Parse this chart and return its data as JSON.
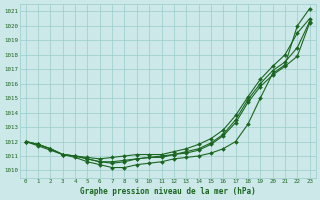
{
  "title": "Graphe pression niveau de la mer (hPa)",
  "bg_color": "#cce8e8",
  "grid_color": "#99cccc",
  "line_color": "#1a6620",
  "xlim": [
    -0.5,
    23.5
  ],
  "ylim": [
    1009.5,
    1021.5
  ],
  "xticks": [
    0,
    1,
    2,
    3,
    4,
    5,
    6,
    7,
    8,
    9,
    10,
    11,
    12,
    13,
    14,
    15,
    16,
    17,
    18,
    19,
    20,
    21,
    22,
    23
  ],
  "yticks": [
    1010,
    1011,
    1012,
    1013,
    1014,
    1015,
    1016,
    1017,
    1018,
    1019,
    1020,
    1021
  ],
  "series": [
    [
      1012.0,
      1011.8,
      1011.5,
      1011.1,
      1011.0,
      1010.9,
      1010.8,
      1010.9,
      1011.0,
      1011.1,
      1011.1,
      1011.1,
      1011.3,
      1011.5,
      1011.8,
      1012.2,
      1012.8,
      1013.8,
      1015.1,
      1016.3,
      1017.2,
      1018.0,
      1019.5,
      1020.5
    ],
    [
      1012.0,
      1011.8,
      1011.5,
      1011.1,
      1011.0,
      1010.8,
      1010.6,
      1010.6,
      1010.7,
      1010.8,
      1010.9,
      1011.0,
      1011.1,
      1011.3,
      1011.5,
      1011.9,
      1012.5,
      1013.5,
      1014.9,
      1016.0,
      1016.9,
      1017.5,
      1018.5,
      1020.3
    ],
    [
      1012.0,
      1011.8,
      1011.5,
      1011.1,
      1011.0,
      1010.8,
      1010.6,
      1010.5,
      1010.6,
      1010.8,
      1010.9,
      1010.9,
      1011.1,
      1011.2,
      1011.4,
      1011.8,
      1012.4,
      1013.3,
      1014.7,
      1015.8,
      1016.6,
      1017.2,
      1017.9,
      1020.2
    ],
    [
      1012.0,
      1011.7,
      1011.4,
      1011.1,
      1010.9,
      1010.6,
      1010.4,
      1010.2,
      1010.2,
      1010.4,
      1010.5,
      1010.6,
      1010.8,
      1010.9,
      1011.0,
      1011.2,
      1011.5,
      1012.0,
      1013.2,
      1015.0,
      1016.7,
      1017.3,
      1020.0,
      1021.2
    ]
  ],
  "marker": "D",
  "markersize": 2.0,
  "linewidth": 0.8,
  "figsize": [
    3.2,
    2.0
  ],
  "dpi": 100
}
